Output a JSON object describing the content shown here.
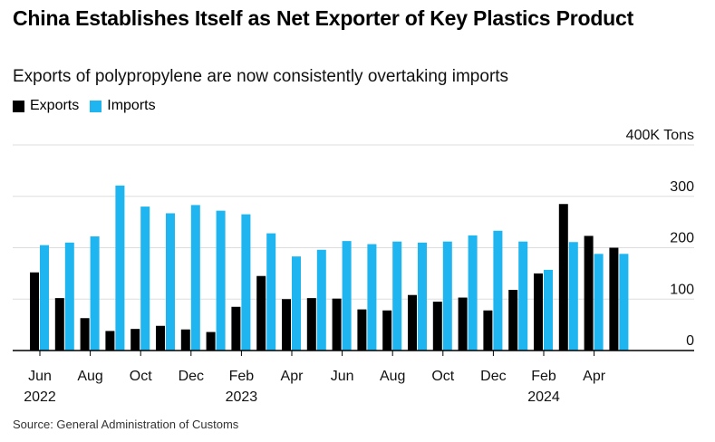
{
  "title": "China Establishes Itself as Net Exporter of Key Plastics Product",
  "subtitle": "Exports of polypropylene are now consistently overtaking imports",
  "source": "Source: General Administration of Customs",
  "colors": {
    "exports": "#000000",
    "imports": "#1fb5f0",
    "grid": "#dddddd"
  },
  "chart_data": {
    "type": "bar",
    "title": "China Establishes Itself as Net Exporter of Key Plastics Product",
    "subtitle": "Exports of polypropylene are now consistently overtaking imports",
    "ylabel": "400K Tons",
    "ylim": [
      0,
      400
    ],
    "yticks": [
      {
        "value": 0,
        "label": "0"
      },
      {
        "value": 100,
        "label": "100"
      },
      {
        "value": 200,
        "label": "200"
      },
      {
        "value": 300,
        "label": "300"
      },
      {
        "value": 400,
        "label": "400K Tons"
      }
    ],
    "grid": true,
    "legend_position": "top-left",
    "categories": [
      "Jun 2022",
      "Jul 2022",
      "Aug 2022",
      "Sep 2022",
      "Oct 2022",
      "Nov 2022",
      "Dec 2022",
      "Jan 2023",
      "Feb 2023",
      "Mar 2023",
      "Apr 2023",
      "May 2023",
      "Jun 2023",
      "Jul 2023",
      "Aug 2023",
      "Sep 2023",
      "Oct 2023",
      "Nov 2023",
      "Dec 2023",
      "Jan 2024",
      "Feb 2024",
      "Mar 2024",
      "Apr 2024",
      "May 2024"
    ],
    "x_tick_labels": [
      {
        "index": 0,
        "month": "Jun",
        "year": "2022"
      },
      {
        "index": 2,
        "month": "Aug",
        "year": ""
      },
      {
        "index": 4,
        "month": "Oct",
        "year": ""
      },
      {
        "index": 6,
        "month": "Dec",
        "year": ""
      },
      {
        "index": 8,
        "month": "Feb",
        "year": "2023"
      },
      {
        "index": 10,
        "month": "Apr",
        "year": ""
      },
      {
        "index": 12,
        "month": "Jun",
        "year": ""
      },
      {
        "index": 14,
        "month": "Aug",
        "year": ""
      },
      {
        "index": 16,
        "month": "Oct",
        "year": ""
      },
      {
        "index": 18,
        "month": "Dec",
        "year": ""
      },
      {
        "index": 20,
        "month": "Feb",
        "year": "2024"
      },
      {
        "index": 22,
        "month": "Apr",
        "year": ""
      }
    ],
    "series": [
      {
        "name": "Exports",
        "values": [
          152,
          102,
          63,
          38,
          42,
          48,
          41,
          36,
          85,
          145,
          100,
          102,
          101,
          80,
          78,
          108,
          95,
          103,
          78,
          118,
          150,
          285,
          223,
          200
        ]
      },
      {
        "name": "Imports",
        "values": [
          205,
          210,
          222,
          321,
          280,
          267,
          283,
          272,
          265,
          228,
          183,
          196,
          213,
          207,
          212,
          210,
          212,
          224,
          233,
          212,
          157,
          211,
          188,
          188
        ]
      }
    ]
  }
}
